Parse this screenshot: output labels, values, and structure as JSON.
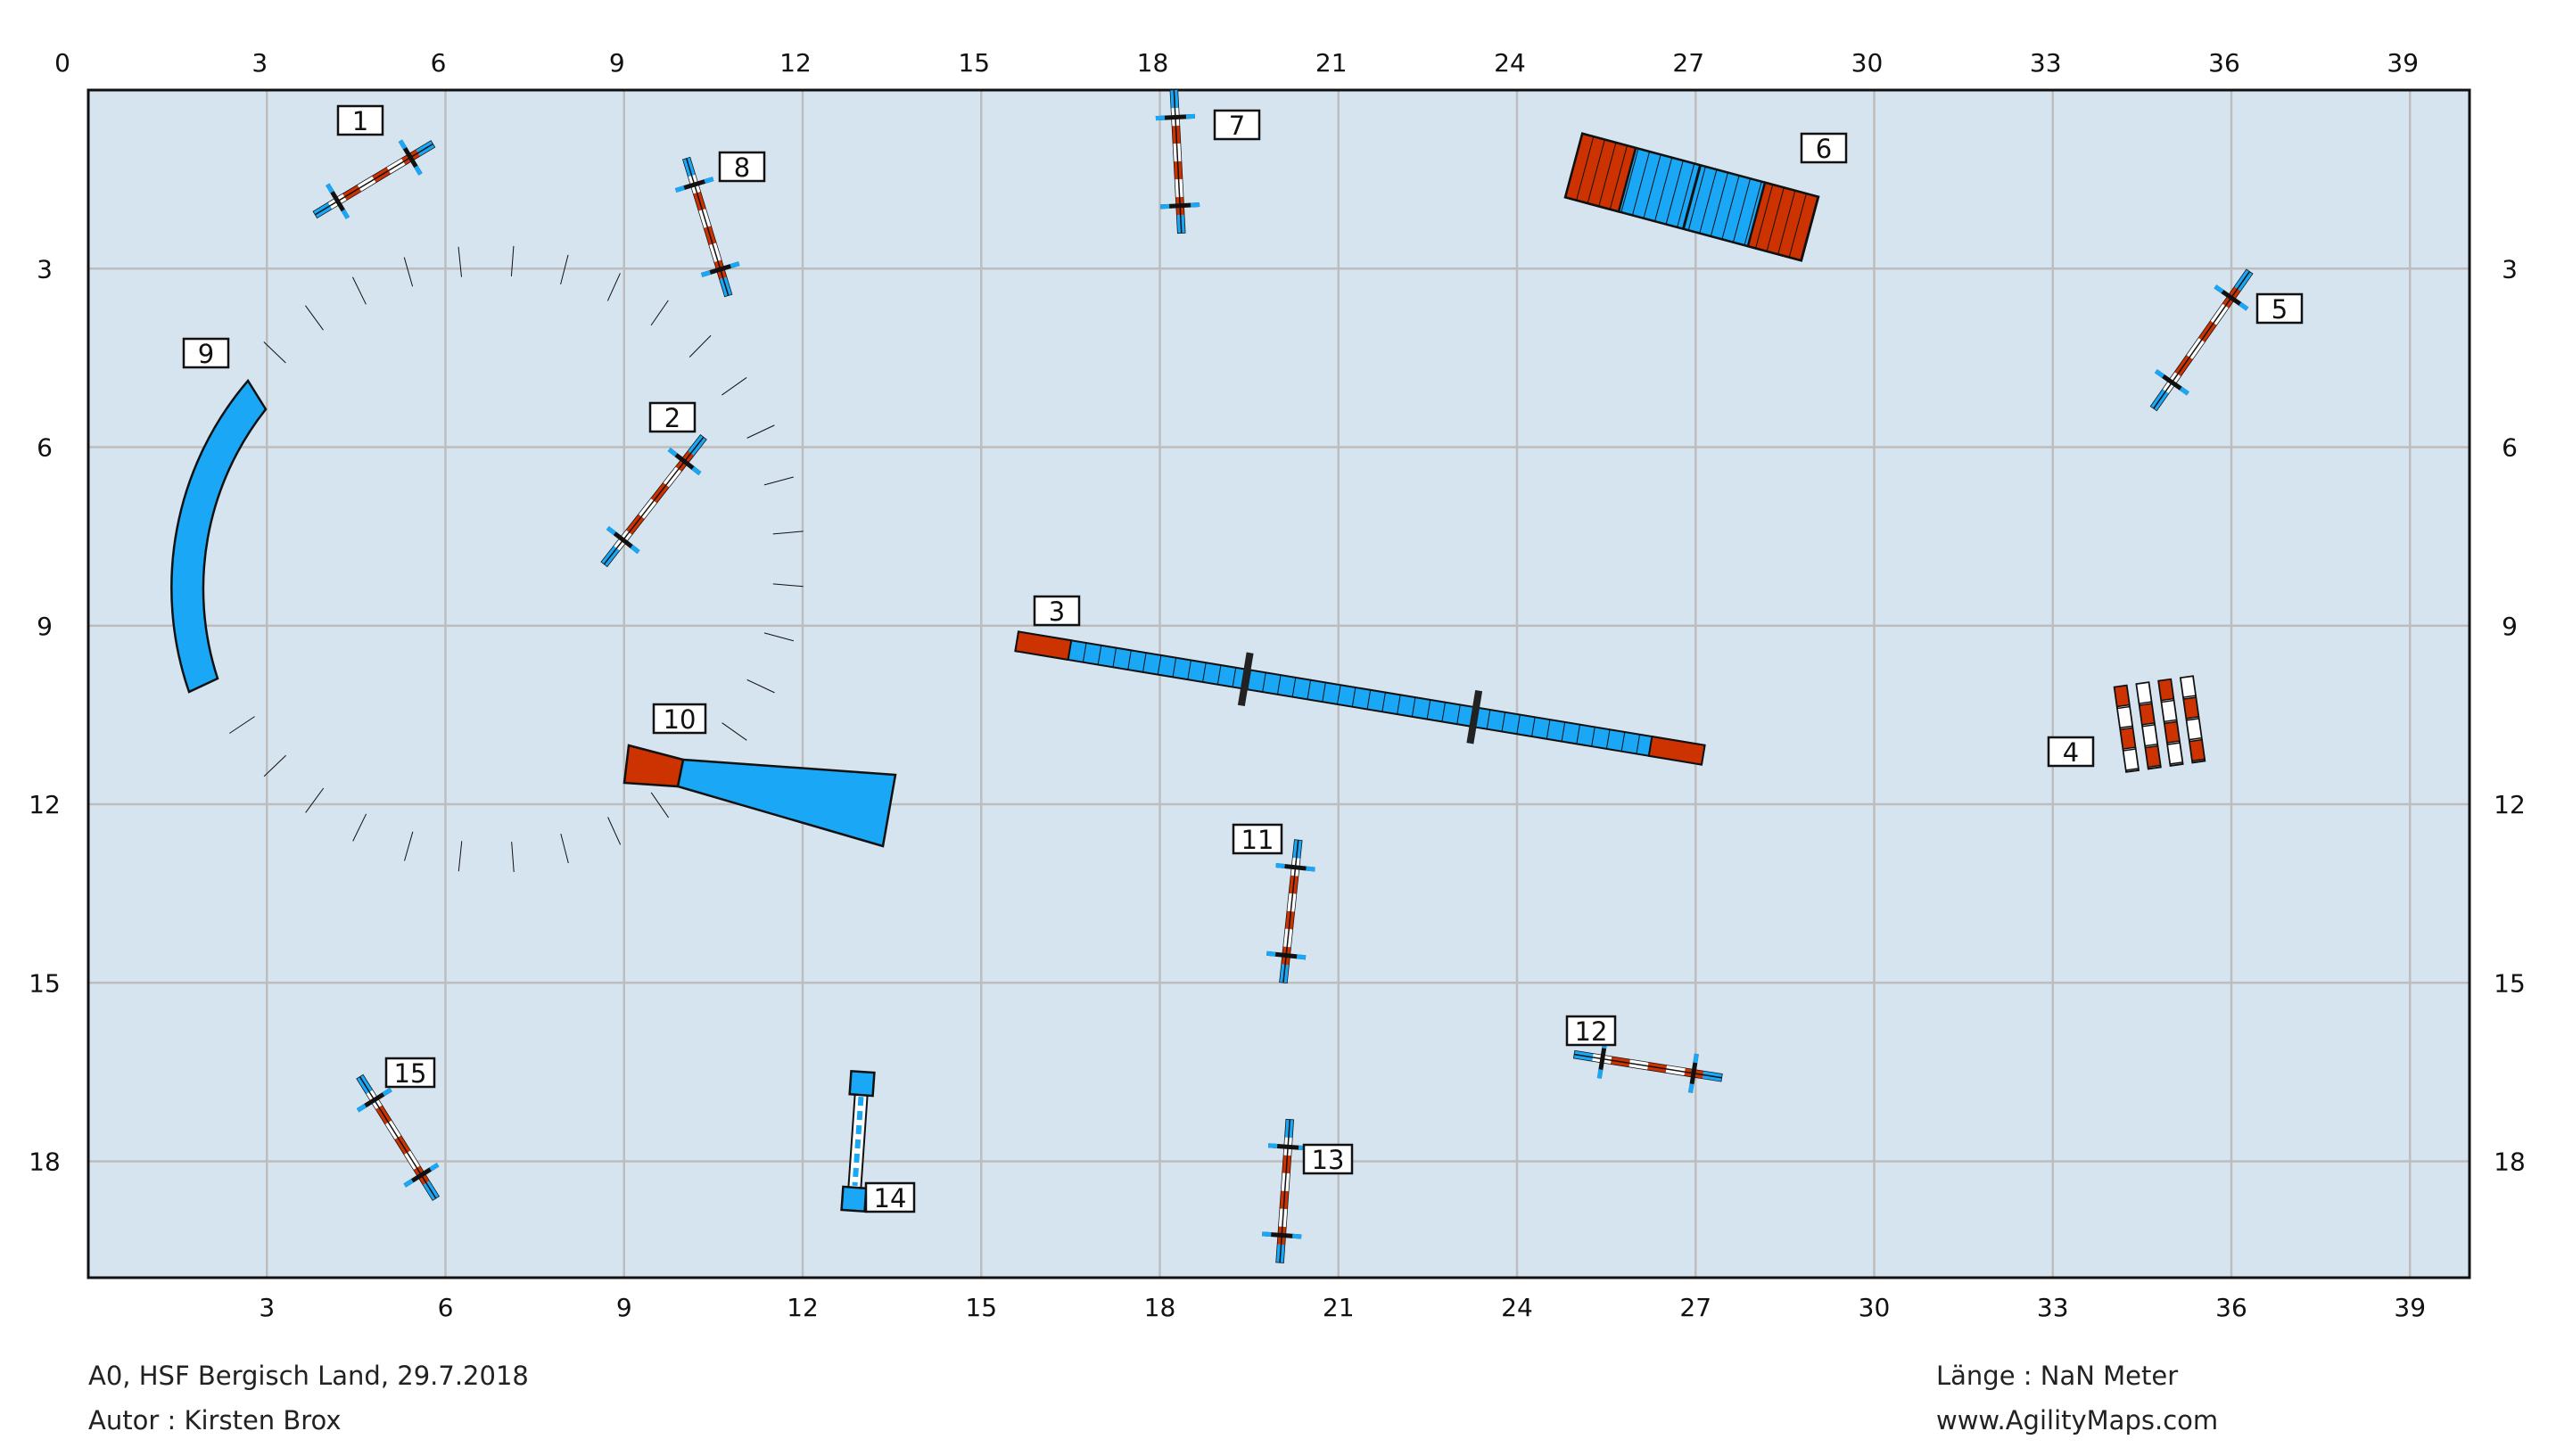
{
  "course": {
    "x_ticks": [
      "0",
      "3",
      "6",
      "9",
      "12",
      "15",
      "18",
      "21",
      "24",
      "27",
      "30",
      "33",
      "36",
      "39"
    ],
    "x_ticks_bottom": [
      "3",
      "6",
      "9",
      "12",
      "15",
      "18",
      "21",
      "24",
      "27",
      "30",
      "33",
      "36",
      "39"
    ],
    "y_ticks": [
      "3",
      "6",
      "9",
      "12",
      "15",
      "18"
    ],
    "field": {
      "width_m": 40,
      "height_m": 20
    },
    "colors": {
      "field": "#d6e4f0",
      "grid": "#bdbdbd",
      "blue": "#1aa7f5",
      "red": "#cc3300",
      "line": "#111111"
    }
  },
  "obstacles": {
    "jumps": [
      {
        "number": "1",
        "type": "jump",
        "cx": 4.8,
        "cy": 1.5,
        "angle": -31,
        "length": 2.3
      },
      {
        "number": "2",
        "type": "jump",
        "cx": 9.5,
        "cy": 6.9,
        "angle": -52,
        "length": 2.7
      },
      {
        "number": "5",
        "type": "jump",
        "cx": 35.5,
        "cy": 4.2,
        "angle": -55,
        "length": 2.8
      },
      {
        "number": "7",
        "type": "jump",
        "cx": 18.3,
        "cy": 1.2,
        "angle": 87,
        "length": 2.4
      },
      {
        "number": "8",
        "type": "jump",
        "cx": 10.4,
        "cy": 2.3,
        "angle": 73,
        "length": 2.4
      },
      {
        "number": "11",
        "type": "jump",
        "cx": 20.2,
        "cy": 13.8,
        "angle": 96,
        "length": 2.4
      },
      {
        "number": "12",
        "type": "jump",
        "cx": 26.2,
        "cy": 16.4,
        "angle": 9,
        "length": 2.5
      },
      {
        "number": "13",
        "type": "jump",
        "cx": 20.1,
        "cy": 18.5,
        "angle": 94,
        "length": 2.4
      },
      {
        "number": "15",
        "type": "jump",
        "cx": 5.2,
        "cy": 17.6,
        "angle": 58,
        "length": 2.4
      }
    ],
    "dogwalk": {
      "number": "3"
    },
    "weave": {
      "number": "4"
    },
    "aframe": {
      "number": "6"
    },
    "tunnel": {
      "number": "9"
    },
    "chute": {
      "number": "10"
    },
    "tire": {
      "number": "14"
    }
  },
  "footer": {
    "event": "A0, HSF Bergisch Land, 29.7.2018",
    "author": "Autor : Kirsten Brox",
    "length": "Länge : NaN Meter",
    "site": "www.AgilityMaps.com"
  }
}
